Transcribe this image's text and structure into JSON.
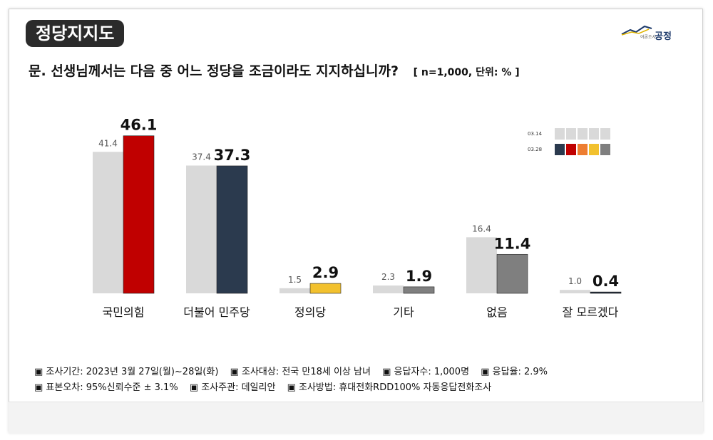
{
  "header": {
    "title": "정당지지도",
    "logo_sub": "여론조사",
    "logo_main": "공정"
  },
  "question": {
    "text": "문. 선생님께서는 다음 중 어느 정당을 조금이라도 지지하십니까?",
    "note": "[ n=1,000, 단위: % ]"
  },
  "chart_data": {
    "type": "bar",
    "categories": [
      "국민의힘",
      "더불어 민주당",
      "정의당",
      "기타",
      "없음",
      "잘 모르겠다"
    ],
    "series": [
      {
        "name": "03.14",
        "values": [
          41.4,
          37.4,
          1.5,
          2.3,
          16.4,
          1.0
        ]
      },
      {
        "name": "03.28",
        "values": [
          46.1,
          37.3,
          2.9,
          1.9,
          11.4,
          0.4
        ]
      }
    ],
    "prev_color": "#d9d9d9",
    "current_colors": [
      "#c00000",
      "#2b3a4e",
      "#f2c12e",
      "#7f7f7f",
      "#7f7f7f",
      "#1e2a3a"
    ],
    "ylim": [
      0,
      50
    ],
    "legend_position": "top-right",
    "grid": false
  },
  "legend": {
    "rows": [
      {
        "label": "03.14",
        "colors": [
          "#d9d9d9",
          "#d9d9d9",
          "#d9d9d9",
          "#d9d9d9",
          "#d9d9d9"
        ]
      },
      {
        "label": "03.28",
        "colors": [
          "#2b3a4e",
          "#c00000",
          "#ed7d31",
          "#f2c12e",
          "#7f7f7f"
        ]
      }
    ]
  },
  "notes": {
    "row1": [
      "▣ 조사기간: 2023년 3월 27일(월)~28일(화)",
      "▣ 조사대상: 전국 만18세 이상 남녀",
      "▣ 응답자수: 1,000명",
      "▣ 응답율: 2.9%"
    ],
    "row2": [
      "▣ 표본오차: 95%신뢰수준 ± 3.1%",
      "▣ 조사주관: 데일리안",
      "▣ 조사방법: 휴대전화RDD100% 자동응답전화조사"
    ]
  }
}
